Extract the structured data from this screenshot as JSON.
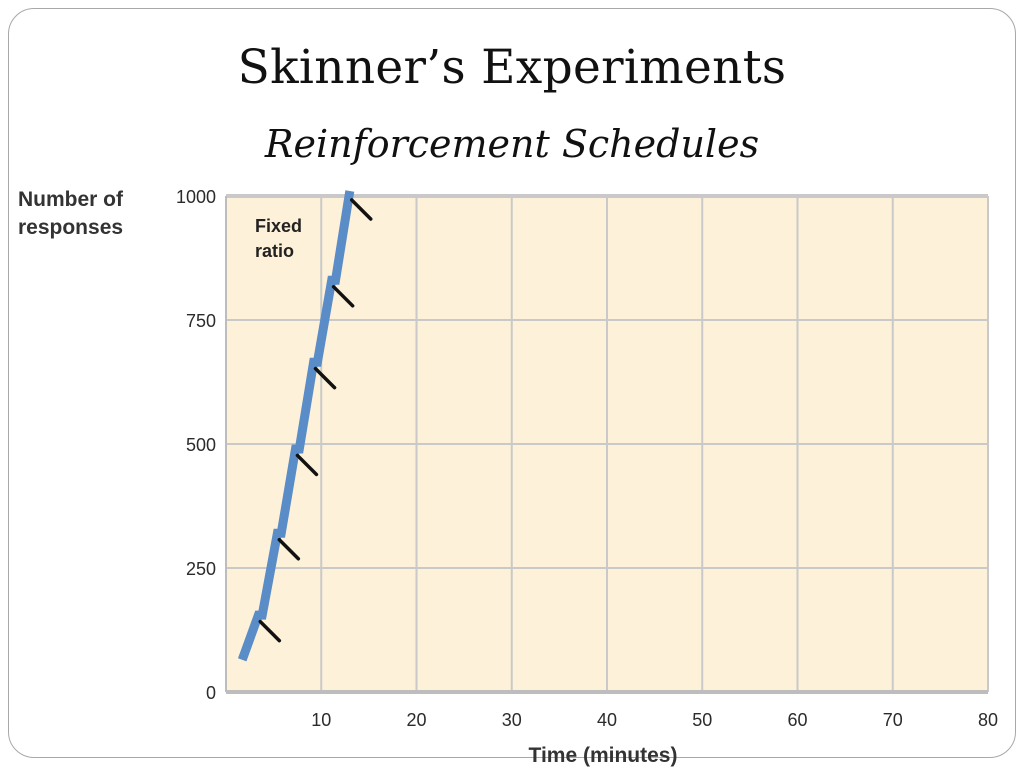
{
  "slide": {
    "title": "Skinner’s Experiments",
    "subtitle": "Reinforcement Schedules"
  },
  "chart_data": {
    "type": "line",
    "title": "",
    "xlabel": "Time (minutes)",
    "ylabel": [
      "Number of",
      "responses"
    ],
    "xlim": [
      0,
      80
    ],
    "ylim": [
      0,
      1000
    ],
    "xticks": [
      10,
      20,
      30,
      40,
      50,
      60,
      70,
      80
    ],
    "yticks": [
      0,
      250,
      500,
      750,
      1000
    ],
    "grid": true,
    "colors": {
      "plot_bg": "#fdf1d9",
      "grid": "#c9c9c9",
      "line": "#5a8cc7",
      "marks": "#111111"
    },
    "series": [
      {
        "annotation": [
          "Fixed",
          "ratio"
        ],
        "points": [
          [
            1.7,
            65
          ],
          [
            3.4,
            155
          ],
          [
            3.8,
            155
          ],
          [
            5.4,
            320
          ],
          [
            5.8,
            320
          ],
          [
            7.3,
            490
          ],
          [
            7.7,
            490
          ],
          [
            9.2,
            665
          ],
          [
            9.6,
            665
          ],
          [
            11.1,
            830
          ],
          [
            11.5,
            830
          ],
          [
            13.0,
            1010
          ]
        ],
        "reinforcements": [
          [
            3.6,
            150
          ],
          [
            5.6,
            315
          ],
          [
            7.5,
            485
          ],
          [
            9.4,
            660
          ],
          [
            11.3,
            825
          ],
          [
            13.2,
            1000
          ]
        ]
      }
    ]
  }
}
